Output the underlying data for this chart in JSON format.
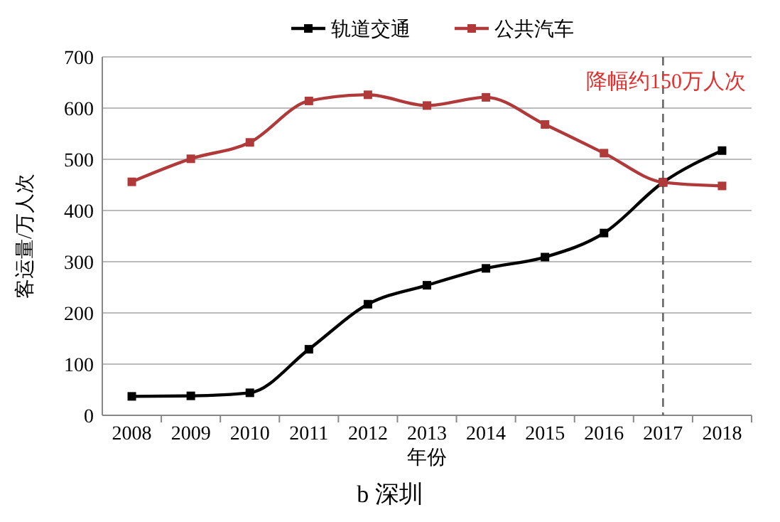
{
  "chart_data": {
    "type": "line",
    "xlabel": "年份",
    "ylabel": "客运量/万人次",
    "categories": [
      "2008",
      "2009",
      "2010",
      "2011",
      "2012",
      "2013",
      "2014",
      "2015",
      "2016",
      "2017",
      "2018"
    ],
    "series": [
      {
        "name": "轨道交通",
        "color": "#000000",
        "values": [
          37,
          38,
          44,
          129,
          217,
          254,
          287,
          309,
          356,
          455,
          517
        ]
      },
      {
        "name": "公共汽车",
        "color": "#b03a3a",
        "values": [
          456,
          501,
          533,
          614,
          626,
          605,
          621,
          568,
          512,
          455,
          448
        ]
      }
    ],
    "ylim": [
      0,
      700
    ],
    "yticks": [
      0,
      100,
      200,
      300,
      400,
      500,
      600,
      700
    ],
    "grid": "y",
    "legend": "top",
    "marker": "square",
    "line_style": "solid",
    "ref_lines": [
      {
        "axis": "x",
        "value": "2017",
        "label": "降幅约150万人次",
        "color": "#666666",
        "line_style": "dashed"
      }
    ],
    "annotations": [
      "b 深圳"
    ]
  }
}
